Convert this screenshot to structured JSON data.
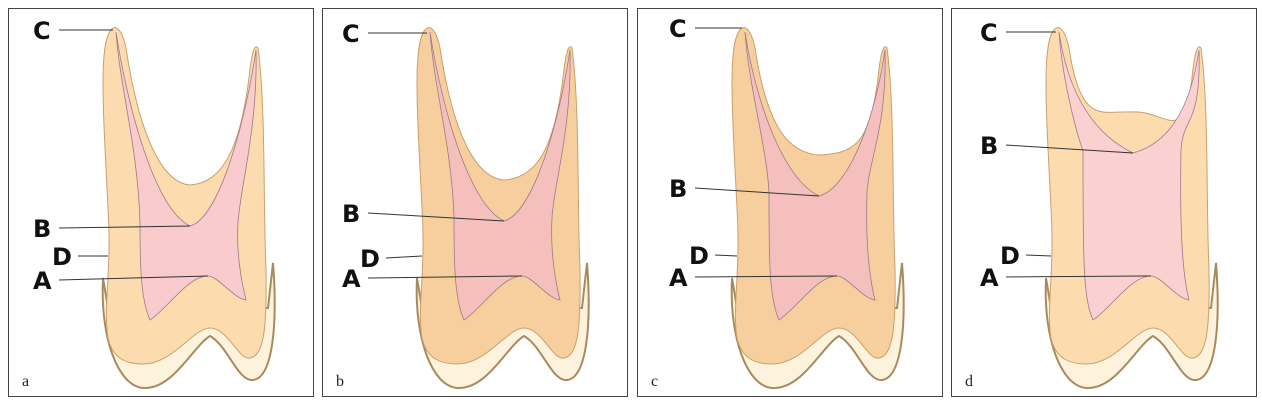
{
  "panels": [
    {
      "label": "a",
      "markers": [
        "C",
        "B",
        "D",
        "A"
      ]
    },
    {
      "label": "b",
      "markers": [
        "C",
        "B",
        "D",
        "A"
      ]
    },
    {
      "label": "c",
      "markers": [
        "C",
        "B",
        "D",
        "A"
      ]
    },
    {
      "label": "d",
      "markers": [
        "C",
        "B",
        "D",
        "A"
      ]
    }
  ]
}
